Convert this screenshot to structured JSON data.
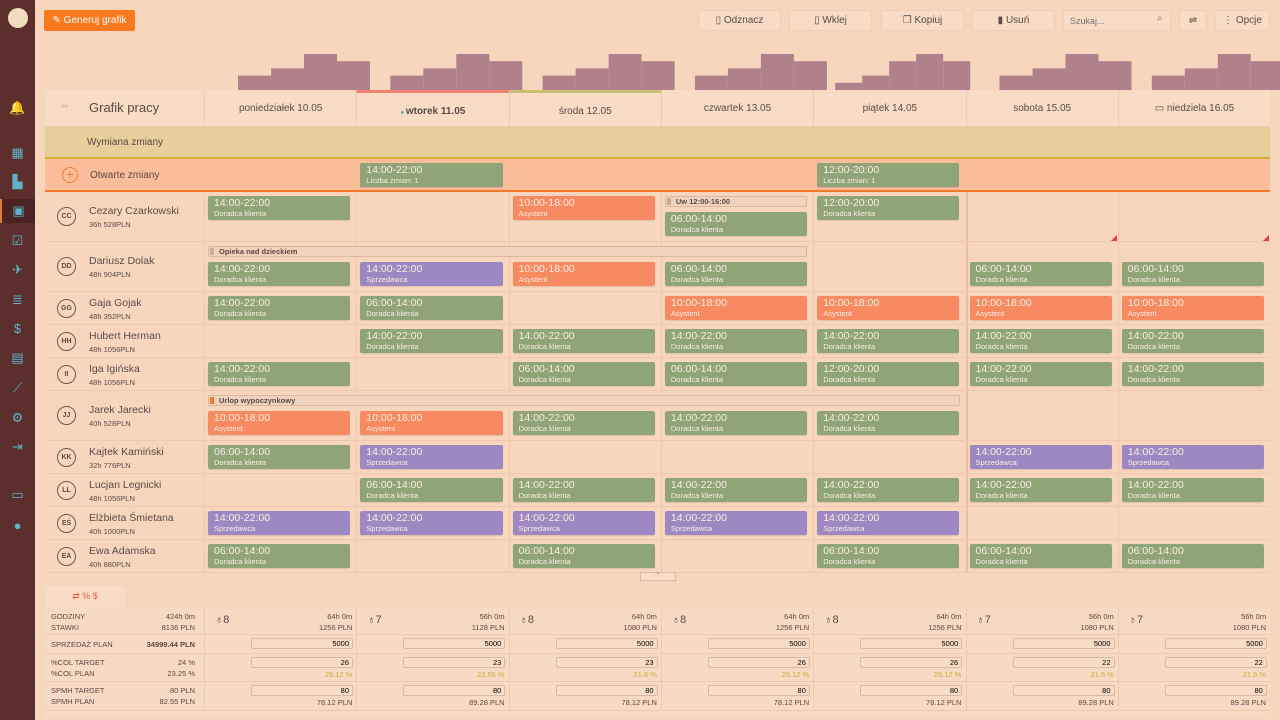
{
  "toolbar": {
    "generate": "Generuj grafik",
    "deselect": "Odznacz",
    "paste": "Wklej",
    "copy": "Kopiuj",
    "delete": "Usuń",
    "search_placeholder": "Szukaj...",
    "options": "Opcje"
  },
  "sidebar": {
    "icons": [
      "bell-icon",
      "dashboard-icon",
      "building-icon",
      "calendar-icon",
      "calendar-check-icon",
      "plane-icon",
      "list-icon",
      "dollar-icon",
      "document-icon",
      "chart-line-icon",
      "gear-icon",
      "logout-icon",
      "book-icon",
      "lightbulb-icon"
    ],
    "active": 3
  },
  "colors": {
    "green": "#8fa477",
    "orange": "#f68b62",
    "purple": "#9e88c2",
    "accent": "#f97a1e",
    "sidebar": "#5c2f2c"
  },
  "grid": {
    "title": "Grafik pracy",
    "days": [
      "poniedziałek 10.05",
      "wtorek 11.05",
      "środa 12.05",
      "czwartek 13.05",
      "piątek 14.05",
      "sobota 15.05",
      "niedziela 16.05"
    ],
    "exchange_label": "Wymiana zmiany",
    "open_label": "Otwarte zmiany",
    "open_shifts": [
      {
        "day": 1,
        "time": "14:00-22:00",
        "role": "Liczba zmian: 1"
      },
      {
        "day": 4,
        "time": "12:00-20:00",
        "role": "Liczba zmian: 1"
      }
    ]
  },
  "coverage": [
    [
      2,
      3,
      5,
      4
    ],
    [
      2,
      3,
      5,
      4
    ],
    [
      2,
      3,
      5,
      4
    ],
    [
      2,
      3,
      5,
      4
    ],
    [
      1,
      2,
      4,
      5,
      4
    ],
    [
      2,
      3,
      5,
      4
    ],
    [
      2,
      3,
      5,
      4
    ]
  ],
  "employees": [
    {
      "initials": "CC",
      "name": "Cezary Czarkowski",
      "summary": "36h 528PLN",
      "ann": [
        {
          "from": 3,
          "to": 3,
          "text": "Uw 12:00-16:00"
        }
      ],
      "shifts": [
        [
          0,
          "14:00-22:00",
          "Doradca klienta",
          "green"
        ],
        [
          2,
          "10:00-18:00",
          "Asystent",
          "orange"
        ],
        [
          3,
          "06:00-14:00",
          "Doradca klienta",
          "green"
        ],
        [
          4,
          "12:00-20:00",
          "Doradca klienta",
          "green"
        ]
      ]
    },
    {
      "initials": "DD",
      "name": "Dariusz Dolak",
      "summary": "48h 904PLN",
      "ann": [
        {
          "from": 0,
          "to": 3,
          "text": "Opieka nad dzieckiem"
        }
      ],
      "shifts": [
        [
          0,
          "14:00-22:00",
          "Doradca klienta",
          "green"
        ],
        [
          1,
          "14:00-22:00",
          "Sprzedawca",
          "purple"
        ],
        [
          2,
          "10:00-18:00",
          "Asystent",
          "orange"
        ],
        [
          3,
          "06:00-14:00",
          "Doradca klienta",
          "green"
        ],
        [
          5,
          "06:00-14:00",
          "Doradca klienta",
          "green"
        ],
        [
          6,
          "06:00-14:00",
          "Doradca klienta",
          "green"
        ]
      ]
    },
    {
      "initials": "GG",
      "name": "Gaja Gojak",
      "summary": "48h 352PLN",
      "ann": [],
      "shifts": [
        [
          0,
          "14:00-22:00",
          "Doradca klienta",
          "green"
        ],
        [
          1,
          "06:00-14:00",
          "Doradca klienta",
          "green"
        ],
        [
          3,
          "10:00-18:00",
          "Asystent",
          "orange"
        ],
        [
          4,
          "10:00-18:00",
          "Asystent",
          "orange"
        ],
        [
          5,
          "10:00-18:00",
          "Asystent",
          "orange"
        ],
        [
          6,
          "10:00-18:00",
          "Asystent",
          "orange"
        ]
      ]
    },
    {
      "initials": "HH",
      "name": "Hubert Herman",
      "summary": "48h 1056PLN",
      "ann": [],
      "shifts": [
        [
          1,
          "14:00-22:00",
          "Doradca klienta",
          "green"
        ],
        [
          2,
          "14:00-22:00",
          "Doradca klienta",
          "green"
        ],
        [
          3,
          "14:00-22:00",
          "Doradca klienta",
          "green"
        ],
        [
          4,
          "14:00-22:00",
          "Doradca klienta",
          "green"
        ],
        [
          5,
          "14:00-22:00",
          "Doradca klienta",
          "green"
        ],
        [
          6,
          "14:00-22:00",
          "Doradca klienta",
          "green"
        ]
      ]
    },
    {
      "initials": "II",
      "name": "Iga Igińska",
      "summary": "48h 1056PLN",
      "ann": [],
      "shifts": [
        [
          0,
          "14:00-22:00",
          "Doradca klienta",
          "green"
        ],
        [
          2,
          "06:00-14:00",
          "Doradca klienta",
          "green"
        ],
        [
          3,
          "06:00-14:00",
          "Doradca klienta",
          "green"
        ],
        [
          4,
          "12:00-20:00",
          "Doradca klienta",
          "green"
        ],
        [
          5,
          "14:00-22:00",
          "Doradca klienta",
          "green"
        ],
        [
          6,
          "14:00-22:00",
          "Doradca klienta",
          "green"
        ]
      ]
    },
    {
      "initials": "JJ",
      "name": "Jarek Jarecki",
      "summary": "40h 528PLN",
      "ann": [
        {
          "from": 0,
          "to": 4,
          "text": "Urlop wypoczynkowy",
          "accent": true
        }
      ],
      "shifts": [
        [
          0,
          "10:00-18:00",
          "Asystent",
          "orange"
        ],
        [
          1,
          "10:00-18:00",
          "Asystent",
          "orange"
        ],
        [
          2,
          "14:00-22:00",
          "Doradca klienta",
          "green"
        ],
        [
          3,
          "14:00-22:00",
          "Doradca klienta",
          "green"
        ],
        [
          4,
          "14:00-22:00",
          "Doradca klienta",
          "green"
        ]
      ]
    },
    {
      "initials": "KK",
      "name": "Kajtek Kamiński",
      "summary": "32h 776PLN",
      "ann": [],
      "shifts": [
        [
          0,
          "06:00-14:00",
          "Doradca klienta",
          "green"
        ],
        [
          1,
          "14:00-22:00",
          "Sprzedawca",
          "purple"
        ],
        [
          5,
          "14:00-22:00",
          "Sprzedawca",
          "purple"
        ],
        [
          6,
          "14:00-22:00",
          "Sprzedawca",
          "purple"
        ]
      ]
    },
    {
      "initials": "LL",
      "name": "Lucjan Legnicki",
      "summary": "48h 1056PLN",
      "ann": [],
      "shifts": [
        [
          1,
          "06:00-14:00",
          "Doradca klienta",
          "green"
        ],
        [
          2,
          "14:00-22:00",
          "Doradca klienta",
          "green"
        ],
        [
          3,
          "14:00-22:00",
          "Doradca klienta",
          "green"
        ],
        [
          4,
          "14:00-22:00",
          "Doradca klienta",
          "green"
        ],
        [
          5,
          "14:00-22:00",
          "Doradca klienta",
          "green"
        ],
        [
          6,
          "14:00-22:00",
          "Doradca klienta",
          "green"
        ]
      ]
    },
    {
      "initials": "EŚ",
      "name": "Elżbieta Śmietana",
      "summary": "40h 1000PLN",
      "ann": [],
      "shifts": [
        [
          0,
          "14:00-22:00",
          "Sprzedawca",
          "purple"
        ],
        [
          1,
          "14:00-22:00",
          "Sprzedawca",
          "purple"
        ],
        [
          2,
          "14:00-22:00",
          "Sprzedawca",
          "purple"
        ],
        [
          3,
          "14:00-22:00",
          "Sprzedawca",
          "purple"
        ],
        [
          4,
          "14:00-22:00",
          "Sprzedawca",
          "purple"
        ]
      ]
    },
    {
      "initials": "EA",
      "name": "Ewa Adamska",
      "summary": "40h 880PLN",
      "ann": [],
      "shifts": [
        [
          0,
          "06:00-14:00",
          "Doradca klienta",
          "green"
        ],
        [
          2,
          "06:00-14:00",
          "Doradca klienta",
          "green"
        ],
        [
          4,
          "06:00-14:00",
          "Doradca klienta",
          "green"
        ],
        [
          5,
          "06:00-14:00",
          "Doradca klienta",
          "green"
        ],
        [
          6,
          "06:00-14:00",
          "Doradca klienta",
          "green"
        ]
      ]
    }
  ],
  "stats": {
    "tab_icons": "⇄ % $",
    "labels": {
      "hours": "GODZINY",
      "rates": "STAWKI",
      "sales": "SPRZEDAŻ PLAN",
      "col_target": "%COL TARGET",
      "col_plan": "%COL PLAN",
      "spmh_target": "SPMH TARGET",
      "spmh_plan": "SPMH PLAN"
    },
    "totals": {
      "hours": "424h 0m",
      "rates": "8136 PLN",
      "sales": "34999.44 PLN",
      "col_target": "24 %",
      "col_plan": "23.25 %",
      "spmh_target": "80 PLN",
      "spmh_plan": "82.55 PLN"
    },
    "days": [
      {
        "people": "8",
        "hours": "64h 0m",
        "rates": "1256 PLN",
        "sales": "5000",
        "col_target": "26",
        "col_plan": "25.12 %",
        "spmh_target": "80",
        "spmh_plan": "78.12 PLN"
      },
      {
        "people": "7",
        "hours": "56h 0m",
        "rates": "1128 PLN",
        "sales": "5000",
        "col_target": "23",
        "col_plan": "22.56 %",
        "spmh_target": "80",
        "spmh_plan": "89.28 PLN"
      },
      {
        "people": "8",
        "hours": "64h 0m",
        "rates": "1080 PLN",
        "sales": "5000",
        "col_target": "23",
        "col_plan": "21.6 %",
        "spmh_target": "80",
        "spmh_plan": "78.12 PLN"
      },
      {
        "people": "8",
        "hours": "64h 0m",
        "rates": "1256 PLN",
        "sales": "5000",
        "col_target": "26",
        "col_plan": "25.12 %",
        "spmh_target": "80",
        "spmh_plan": "78.12 PLN"
      },
      {
        "people": "8",
        "hours": "64h 0m",
        "rates": "1256 PLN",
        "sales": "5000",
        "col_target": "26",
        "col_plan": "25.12 %",
        "spmh_target": "80",
        "spmh_plan": "78.12 PLN"
      },
      {
        "people": "7",
        "hours": "56h 0m",
        "rates": "1080 PLN",
        "sales": "5000",
        "col_target": "22",
        "col_plan": "21.6 %",
        "spmh_target": "80",
        "spmh_plan": "89.28 PLN"
      },
      {
        "people": "7",
        "hours": "56h 0m",
        "rates": "1080 PLN",
        "sales": "5000",
        "col_target": "22",
        "col_plan": "21.6 %",
        "spmh_target": "80",
        "spmh_plan": "89.28 PLN"
      }
    ]
  }
}
